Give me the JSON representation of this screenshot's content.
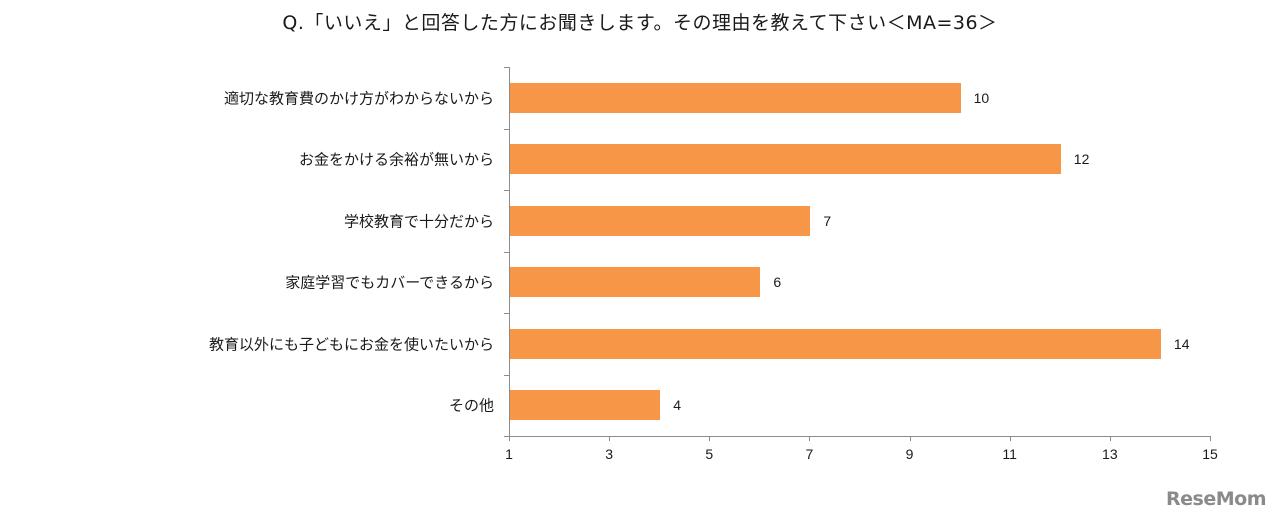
{
  "chart_data": {
    "type": "bar",
    "orientation": "horizontal",
    "title": "Q.「いいえ」と回答した方にお聞きします。その理由を教えて下さい＜MA=36＞",
    "categories": [
      "適切な教育費のかけ方がわからないから",
      "お金をかける余裕が無いから",
      "学校教育で十分だから",
      "家庭学習でもカバーできるから",
      "教育以外にも子どもにお金を使いたいから",
      "その他"
    ],
    "values": [
      10,
      12,
      7,
      6,
      14,
      4
    ],
    "data_labels": [
      "10",
      "12",
      "7",
      "6",
      "14",
      "4"
    ],
    "xlabel": "",
    "ylabel": "",
    "xlim": [
      1,
      15
    ],
    "xticks": [
      "1",
      "3",
      "5",
      "7",
      "9",
      "11",
      "13",
      "15"
    ],
    "grid": false,
    "legend": null,
    "bar_color": "#f79646"
  },
  "watermark": "ReseMom"
}
